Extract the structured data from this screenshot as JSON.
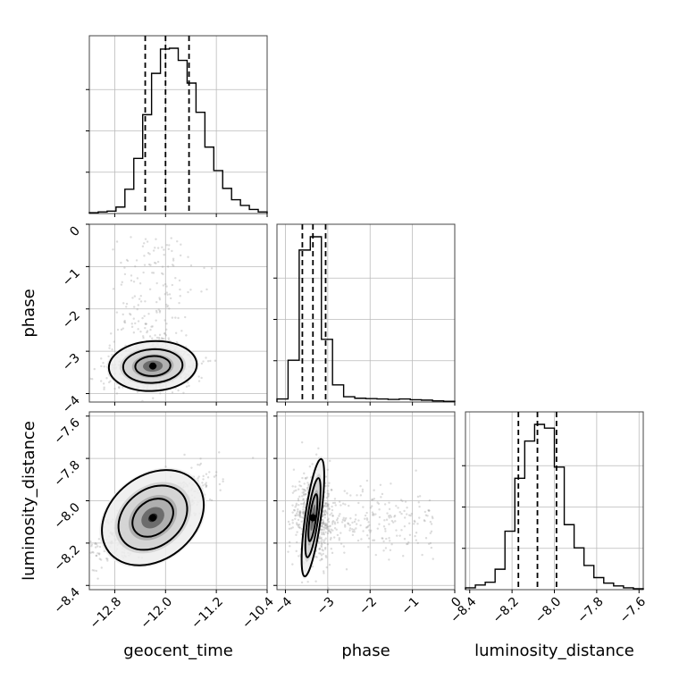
{
  "chart_data": {
    "type": "corner",
    "parameters": [
      {
        "name": "geocent_time",
        "label": "geocent_time",
        "range": [
          -13.2,
          -10.4
        ],
        "ticks": [
          -12.8,
          -12.0,
          -11.2,
          -10.4
        ],
        "tick_labels": [
          "−12.8",
          "−12.0",
          "−11.2",
          "−10.4"
        ],
        "quantiles": [
          -12.32,
          -12.0,
          -11.63
        ]
      },
      {
        "name": "phase",
        "label": "phase",
        "range": [
          -4.2,
          0
        ],
        "ticks": [
          -4,
          -3,
          -2,
          -1,
          0
        ],
        "tick_labels": [
          "−4",
          "−3",
          "−2",
          "−1",
          "0"
        ],
        "quantiles": [
          -3.6,
          -3.35,
          -3.05
        ]
      },
      {
        "name": "luminosity_distance",
        "label": "luminosity_distance",
        "range": [
          -8.42,
          -7.58
        ],
        "ticks": [
          -8.4,
          -8.2,
          -8.0,
          -7.8,
          -7.6
        ],
        "tick_labels": [
          "−8.4",
          "−8.2",
          "−8.0",
          "−7.8",
          "−7.6"
        ],
        "quantiles": [
          -8.17,
          -8.08,
          -7.99
        ]
      }
    ],
    "histograms": [
      {
        "parameter": "geocent_time",
        "edges_range": [
          -13.2,
          -10.4
        ],
        "counts": [
          1,
          2,
          3,
          8,
          30,
          68,
          122,
          173,
          203,
          204,
          189,
          161,
          125,
          82,
          53,
          31,
          17,
          10,
          5,
          2
        ]
      },
      {
        "parameter": "phase",
        "edges_range": [
          -4.2,
          0
        ],
        "counts": [
          8,
          110,
          400,
          435,
          165,
          45,
          14,
          10,
          9,
          8,
          7,
          8,
          6,
          5,
          3,
          2
        ]
      },
      {
        "parameter": "luminosity_distance",
        "edges_range": [
          -8.42,
          -7.58
        ],
        "counts": [
          2,
          5,
          8,
          22,
          63,
          120,
          160,
          178,
          174,
          132,
          70,
          45,
          26,
          13,
          7,
          4,
          2,
          1
        ]
      }
    ],
    "joint": [
      {
        "x": "geocent_time",
        "y": "phase",
        "center": [
          -12.2,
          -3.35
        ]
      },
      {
        "x": "geocent_time",
        "y": "luminosity_distance",
        "center": [
          -12.2,
          -8.08
        ]
      },
      {
        "x": "phase",
        "y": "luminosity_distance",
        "center": [
          -3.35,
          -8.08
        ]
      }
    ],
    "grid": true,
    "quantile_lines": "dashed"
  }
}
